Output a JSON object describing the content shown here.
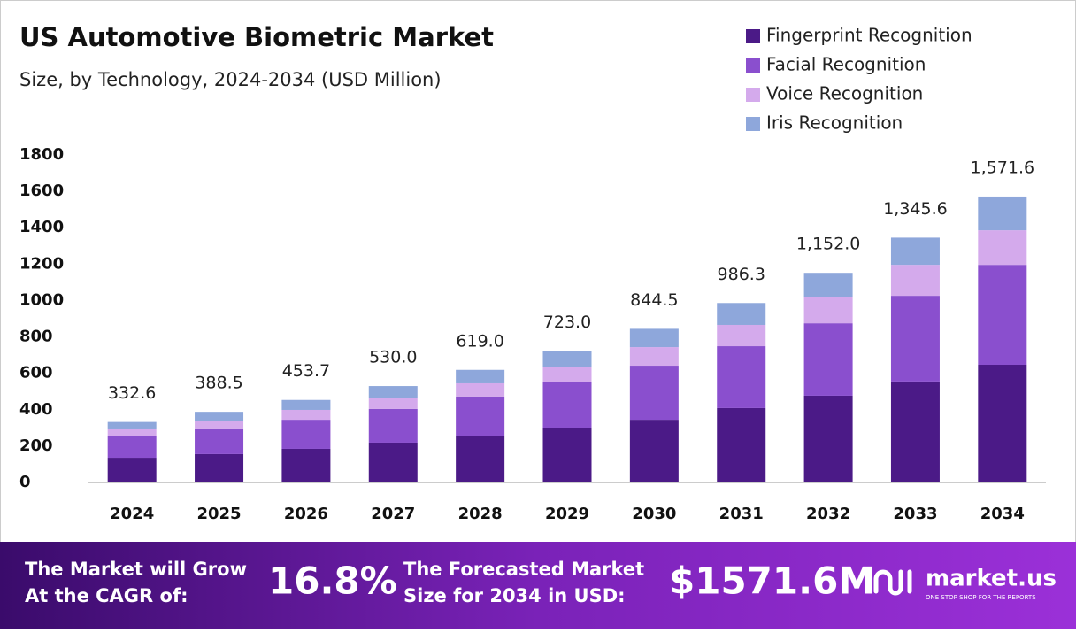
{
  "chart_data": {
    "type": "stacked-bar",
    "title": "US Automotive Biometric Market",
    "subtitle": "Size, by Technology, 2024-2034 (USD Million)",
    "categories": [
      "2024",
      "2025",
      "2026",
      "2027",
      "2028",
      "2029",
      "2030",
      "2031",
      "2032",
      "2033",
      "2034"
    ],
    "series": [
      {
        "name": "Fingerprint Recognition",
        "color": "#4b1a87",
        "values": [
          136,
          156,
          185,
          219,
          253,
          297,
          345,
          409,
          477,
          555,
          647
        ]
      },
      {
        "name": "Facial Recognition",
        "color": "#8a4fce",
        "values": [
          117,
          136,
          160,
          185,
          219,
          253,
          297,
          340,
          398,
          471,
          549
        ]
      },
      {
        "name": "Voice Recognition",
        "color": "#d4aaec",
        "values": [
          39,
          48,
          54,
          63,
          73,
          87,
          102,
          117,
          142,
          170,
          190
        ]
      },
      {
        "name": "Iris Recognition",
        "color": "#8ea7db",
        "values": [
          40.6,
          48.5,
          54.7,
          63,
          74,
          86,
          100.5,
          120.3,
          135,
          149.6,
          185.6
        ]
      }
    ],
    "totals": [
      332.6,
      388.5,
      453.7,
      530.0,
      619.0,
      723.0,
      844.5,
      986.3,
      1152.0,
      1345.6,
      1571.6
    ],
    "total_labels": [
      "332.6",
      "388.5",
      "453.7",
      "530.0",
      "619.0",
      "723.0",
      "844.5",
      "986.3",
      "1,152.0",
      "1,345.6",
      "1,571.6"
    ],
    "ylim": [
      0,
      1800
    ],
    "yticks": [
      0,
      200,
      400,
      600,
      800,
      1000,
      1200,
      1400,
      1600,
      1800
    ],
    "grid": false,
    "legend": "top-right"
  },
  "banner": {
    "cagr_text": [
      "The Market will Grow",
      "At the CAGR of:"
    ],
    "cagr": "16.8%",
    "size_text": [
      "The Forecasted Market",
      "Size for 2034 in USD:"
    ],
    "size": "$1571.6M",
    "brand": "market.us",
    "tagline": "ONE STOP SHOP FOR THE REPORTS"
  }
}
